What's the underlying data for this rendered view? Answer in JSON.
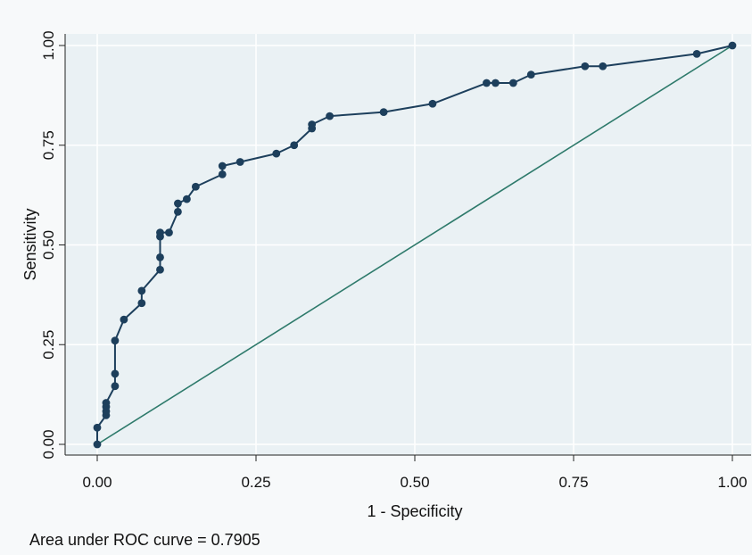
{
  "chart_data": {
    "type": "line",
    "title": "",
    "xlabel": "1 - Specificity",
    "ylabel": "Sensitivity",
    "xlim": [
      0,
      1
    ],
    "ylim": [
      0,
      1
    ],
    "x_ticks": [
      "0.00",
      "0.25",
      "0.50",
      "0.75",
      "1.00"
    ],
    "y_ticks": [
      "0.00",
      "0.25",
      "0.50",
      "0.75",
      "1.00"
    ],
    "grid": true,
    "note": "Area under ROC curve = 0.7905",
    "colors": {
      "curve": "#1d3f5c",
      "reference": "#2e7a6b",
      "plot_region": "#eaf1f4",
      "grid": "#ffffff"
    },
    "series": [
      {
        "x": [
          0.0,
          0.0,
          0.014,
          0.014,
          0.014,
          0.014,
          0.028,
          0.028,
          0.028,
          0.042,
          0.07,
          0.07,
          0.099,
          0.099,
          0.099,
          0.099,
          0.113,
          0.127,
          0.127,
          0.141,
          0.155,
          0.197,
          0.197,
          0.225,
          0.282,
          0.31,
          0.338,
          0.338,
          0.366,
          0.451,
          0.528,
          0.613,
          0.627,
          0.655,
          0.683,
          0.768,
          0.796,
          0.944,
          1.0
        ],
        "y": [
          0.0,
          0.042,
          0.073,
          0.083,
          0.094,
          0.104,
          0.146,
          0.177,
          0.26,
          0.313,
          0.354,
          0.385,
          0.438,
          0.469,
          0.521,
          0.531,
          0.531,
          0.583,
          0.604,
          0.615,
          0.646,
          0.677,
          0.698,
          0.708,
          0.729,
          0.75,
          0.792,
          0.802,
          0.823,
          0.833,
          0.854,
          0.906,
          0.906,
          0.906,
          0.927,
          0.948,
          0.948,
          0.979,
          1.0
        ]
      },
      {
        "x": [
          0,
          1
        ],
        "y": [
          0,
          1
        ]
      }
    ]
  }
}
